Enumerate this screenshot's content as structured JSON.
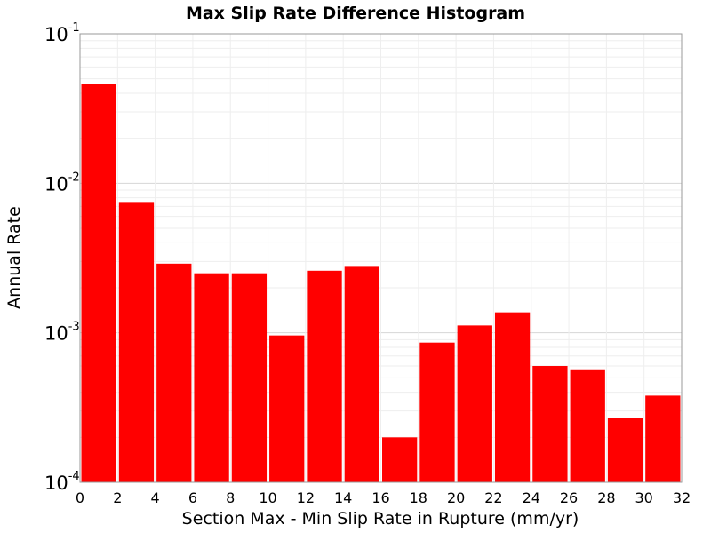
{
  "chart_data": {
    "type": "bar",
    "title": "Max Slip Rate Difference Histogram",
    "xlabel": "Section Max - Min Slip Rate in Rupture (mm/yr)",
    "ylabel": "Annual Rate",
    "x_range": [
      0,
      32
    ],
    "y_range": [
      0.0001,
      0.1
    ],
    "y_scale": "log",
    "grid": true,
    "bar_color": "#ff0000",
    "bin_width": 2,
    "x_ticks": [
      "0",
      "2",
      "4",
      "6",
      "8",
      "10",
      "12",
      "14",
      "16",
      "18",
      "20",
      "22",
      "24",
      "26",
      "28",
      "30",
      "32"
    ],
    "y_ticks": [
      {
        "base": "10",
        "exp": "-4"
      },
      {
        "base": "10",
        "exp": "-3"
      },
      {
        "base": "10",
        "exp": "-2"
      },
      {
        "base": "10",
        "exp": "-1"
      }
    ],
    "bins": [
      {
        "x": 1,
        "value": 0.046
      },
      {
        "x": 3,
        "value": 0.0075
      },
      {
        "x": 5,
        "value": 0.0029
      },
      {
        "x": 7,
        "value": 0.0025
      },
      {
        "x": 9,
        "value": 0.0025
      },
      {
        "x": 11,
        "value": 0.00096
      },
      {
        "x": 13,
        "value": 0.0026
      },
      {
        "x": 15,
        "value": 0.0028
      },
      {
        "x": 17,
        "value": 0.0002
      },
      {
        "x": 19,
        "value": 0.00086
      },
      {
        "x": 21,
        "value": 0.00112
      },
      {
        "x": 23,
        "value": 0.00137
      },
      {
        "x": 25,
        "value": 0.0006
      },
      {
        "x": 27,
        "value": 0.00057
      },
      {
        "x": 29,
        "value": 0.00027
      },
      {
        "x": 31,
        "value": 0.00038
      }
    ]
  }
}
